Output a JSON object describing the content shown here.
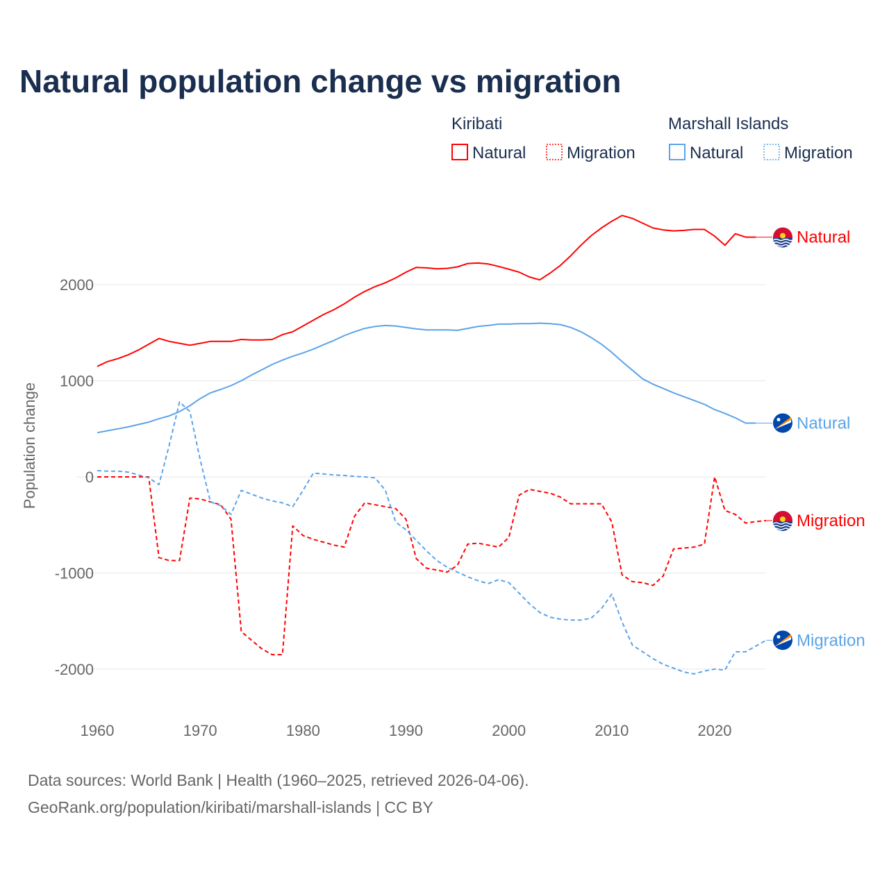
{
  "chart_data": {
    "type": "line",
    "title": "Natural population change vs migration",
    "ylabel": "Population change",
    "xlabel": "",
    "xlim": [
      1960,
      2025
    ],
    "ylim": [
      -2300,
      2800
    ],
    "x_ticks": [
      1960,
      1970,
      1980,
      1990,
      2000,
      2010,
      2020
    ],
    "y_ticks": [
      -2000,
      -1000,
      0,
      1000,
      2000
    ],
    "grid": true,
    "legend_position": "top-right",
    "legend_groups": [
      {
        "name": "Kiribati",
        "items": [
          "Natural",
          "Migration"
        ]
      },
      {
        "name": "Marshall Islands",
        "items": [
          "Natural",
          "Migration"
        ]
      }
    ],
    "x": [
      1960,
      1961,
      1962,
      1963,
      1964,
      1965,
      1966,
      1967,
      1968,
      1969,
      1970,
      1971,
      1972,
      1973,
      1974,
      1975,
      1976,
      1977,
      1978,
      1979,
      1980,
      1981,
      1982,
      1983,
      1984,
      1985,
      1986,
      1987,
      1988,
      1989,
      1990,
      1991,
      1992,
      1993,
      1994,
      1995,
      1996,
      1997,
      1998,
      1999,
      2000,
      2001,
      2002,
      2003,
      2004,
      2005,
      2006,
      2007,
      2008,
      2009,
      2010,
      2011,
      2012,
      2013,
      2014,
      2015,
      2016,
      2017,
      2018,
      2019,
      2020,
      2021,
      2022,
      2023,
      2024,
      2025
    ],
    "series": [
      {
        "name": "Natural",
        "country": "Kiribati",
        "color": "#ff0000",
        "dashed": false,
        "values": [
          1150,
          1200,
          1230,
          1270,
          1320,
          1380,
          1440,
          1410,
          1390,
          1370,
          1390,
          1410,
          1410,
          1410,
          1430,
          1425,
          1425,
          1430,
          1480,
          1510,
          1570,
          1630,
          1690,
          1740,
          1800,
          1870,
          1930,
          1980,
          2020,
          2070,
          2130,
          2180,
          2175,
          2165,
          2170,
          2185,
          2220,
          2225,
          2215,
          2190,
          2160,
          2130,
          2080,
          2050,
          2120,
          2200,
          2300,
          2410,
          2510,
          2590,
          2660,
          2720,
          2690,
          2640,
          2590,
          2570,
          2560,
          2565,
          2575,
          2575,
          2505,
          2410,
          2530,
          2495,
          2495,
          null
        ]
      },
      {
        "name": "Natural",
        "country": "Marshall Islands",
        "color": "#5ba3e8",
        "dashed": false,
        "values": [
          460,
          480,
          500,
          520,
          545,
          570,
          605,
          635,
          680,
          740,
          815,
          875,
          910,
          950,
          1000,
          1060,
          1115,
          1170,
          1215,
          1255,
          1290,
          1330,
          1375,
          1420,
          1470,
          1510,
          1545,
          1565,
          1575,
          1570,
          1555,
          1540,
          1530,
          1530,
          1530,
          1525,
          1545,
          1565,
          1575,
          1590,
          1590,
          1595,
          1595,
          1600,
          1595,
          1585,
          1555,
          1510,
          1450,
          1380,
          1295,
          1200,
          1110,
          1020,
          965,
          920,
          875,
          835,
          795,
          755,
          700,
          660,
          615,
          560,
          560,
          null
        ]
      },
      {
        "name": "Migration",
        "country": "Kiribati",
        "color": "#ff0000",
        "dashed": true,
        "values": [
          0,
          0,
          0,
          0,
          0,
          0,
          -840,
          -870,
          -870,
          -220,
          -230,
          -260,
          -290,
          -440,
          -1610,
          -1700,
          -1790,
          -1850,
          -1850,
          -510,
          -610,
          -650,
          -680,
          -710,
          -730,
          -410,
          -270,
          -290,
          -310,
          -330,
          -440,
          -850,
          -950,
          -970,
          -990,
          -920,
          -700,
          -690,
          -710,
          -730,
          -630,
          -190,
          -130,
          -150,
          -170,
          -210,
          -280,
          -280,
          -280,
          -280,
          -470,
          -1020,
          -1090,
          -1100,
          -1130,
          -1030,
          -750,
          -740,
          -730,
          -700,
          0,
          -350,
          -390,
          -480,
          -465,
          -455
        ]
      },
      {
        "name": "Migration",
        "country": "Marshall Islands",
        "color": "#5ba3e8",
        "dashed": true,
        "values": [
          65,
          60,
          60,
          50,
          20,
          -10,
          -80,
          330,
          780,
          680,
          180,
          -260,
          -300,
          -390,
          -140,
          -180,
          -220,
          -250,
          -270,
          -310,
          -140,
          40,
          30,
          20,
          15,
          5,
          0,
          -10,
          -140,
          -470,
          -550,
          -660,
          -770,
          -870,
          -940,
          -990,
          -1040,
          -1080,
          -1110,
          -1070,
          -1100,
          -1210,
          -1320,
          -1410,
          -1460,
          -1480,
          -1490,
          -1490,
          -1470,
          -1370,
          -1220,
          -1510,
          -1750,
          -1820,
          -1890,
          -1950,
          -1990,
          -2030,
          -2050,
          -2020,
          -2000,
          -2010,
          -1820,
          -1820,
          -1760,
          -1700
        ]
      }
    ]
  },
  "legend": {
    "kiribati": "Kiribati",
    "marshall": "Marshall Islands",
    "natural": "Natural",
    "migration": "Migration"
  },
  "footer": {
    "line1": "Data sources: World Bank | Health (1960–2025, retrieved 2026-04-06).",
    "line2": "GeoRank.org/population/kiribati/marshall-islands | CC BY"
  },
  "colors": {
    "title": "#1a2e4f",
    "axis_text": "#666666",
    "grid": "#e6e6e6"
  }
}
